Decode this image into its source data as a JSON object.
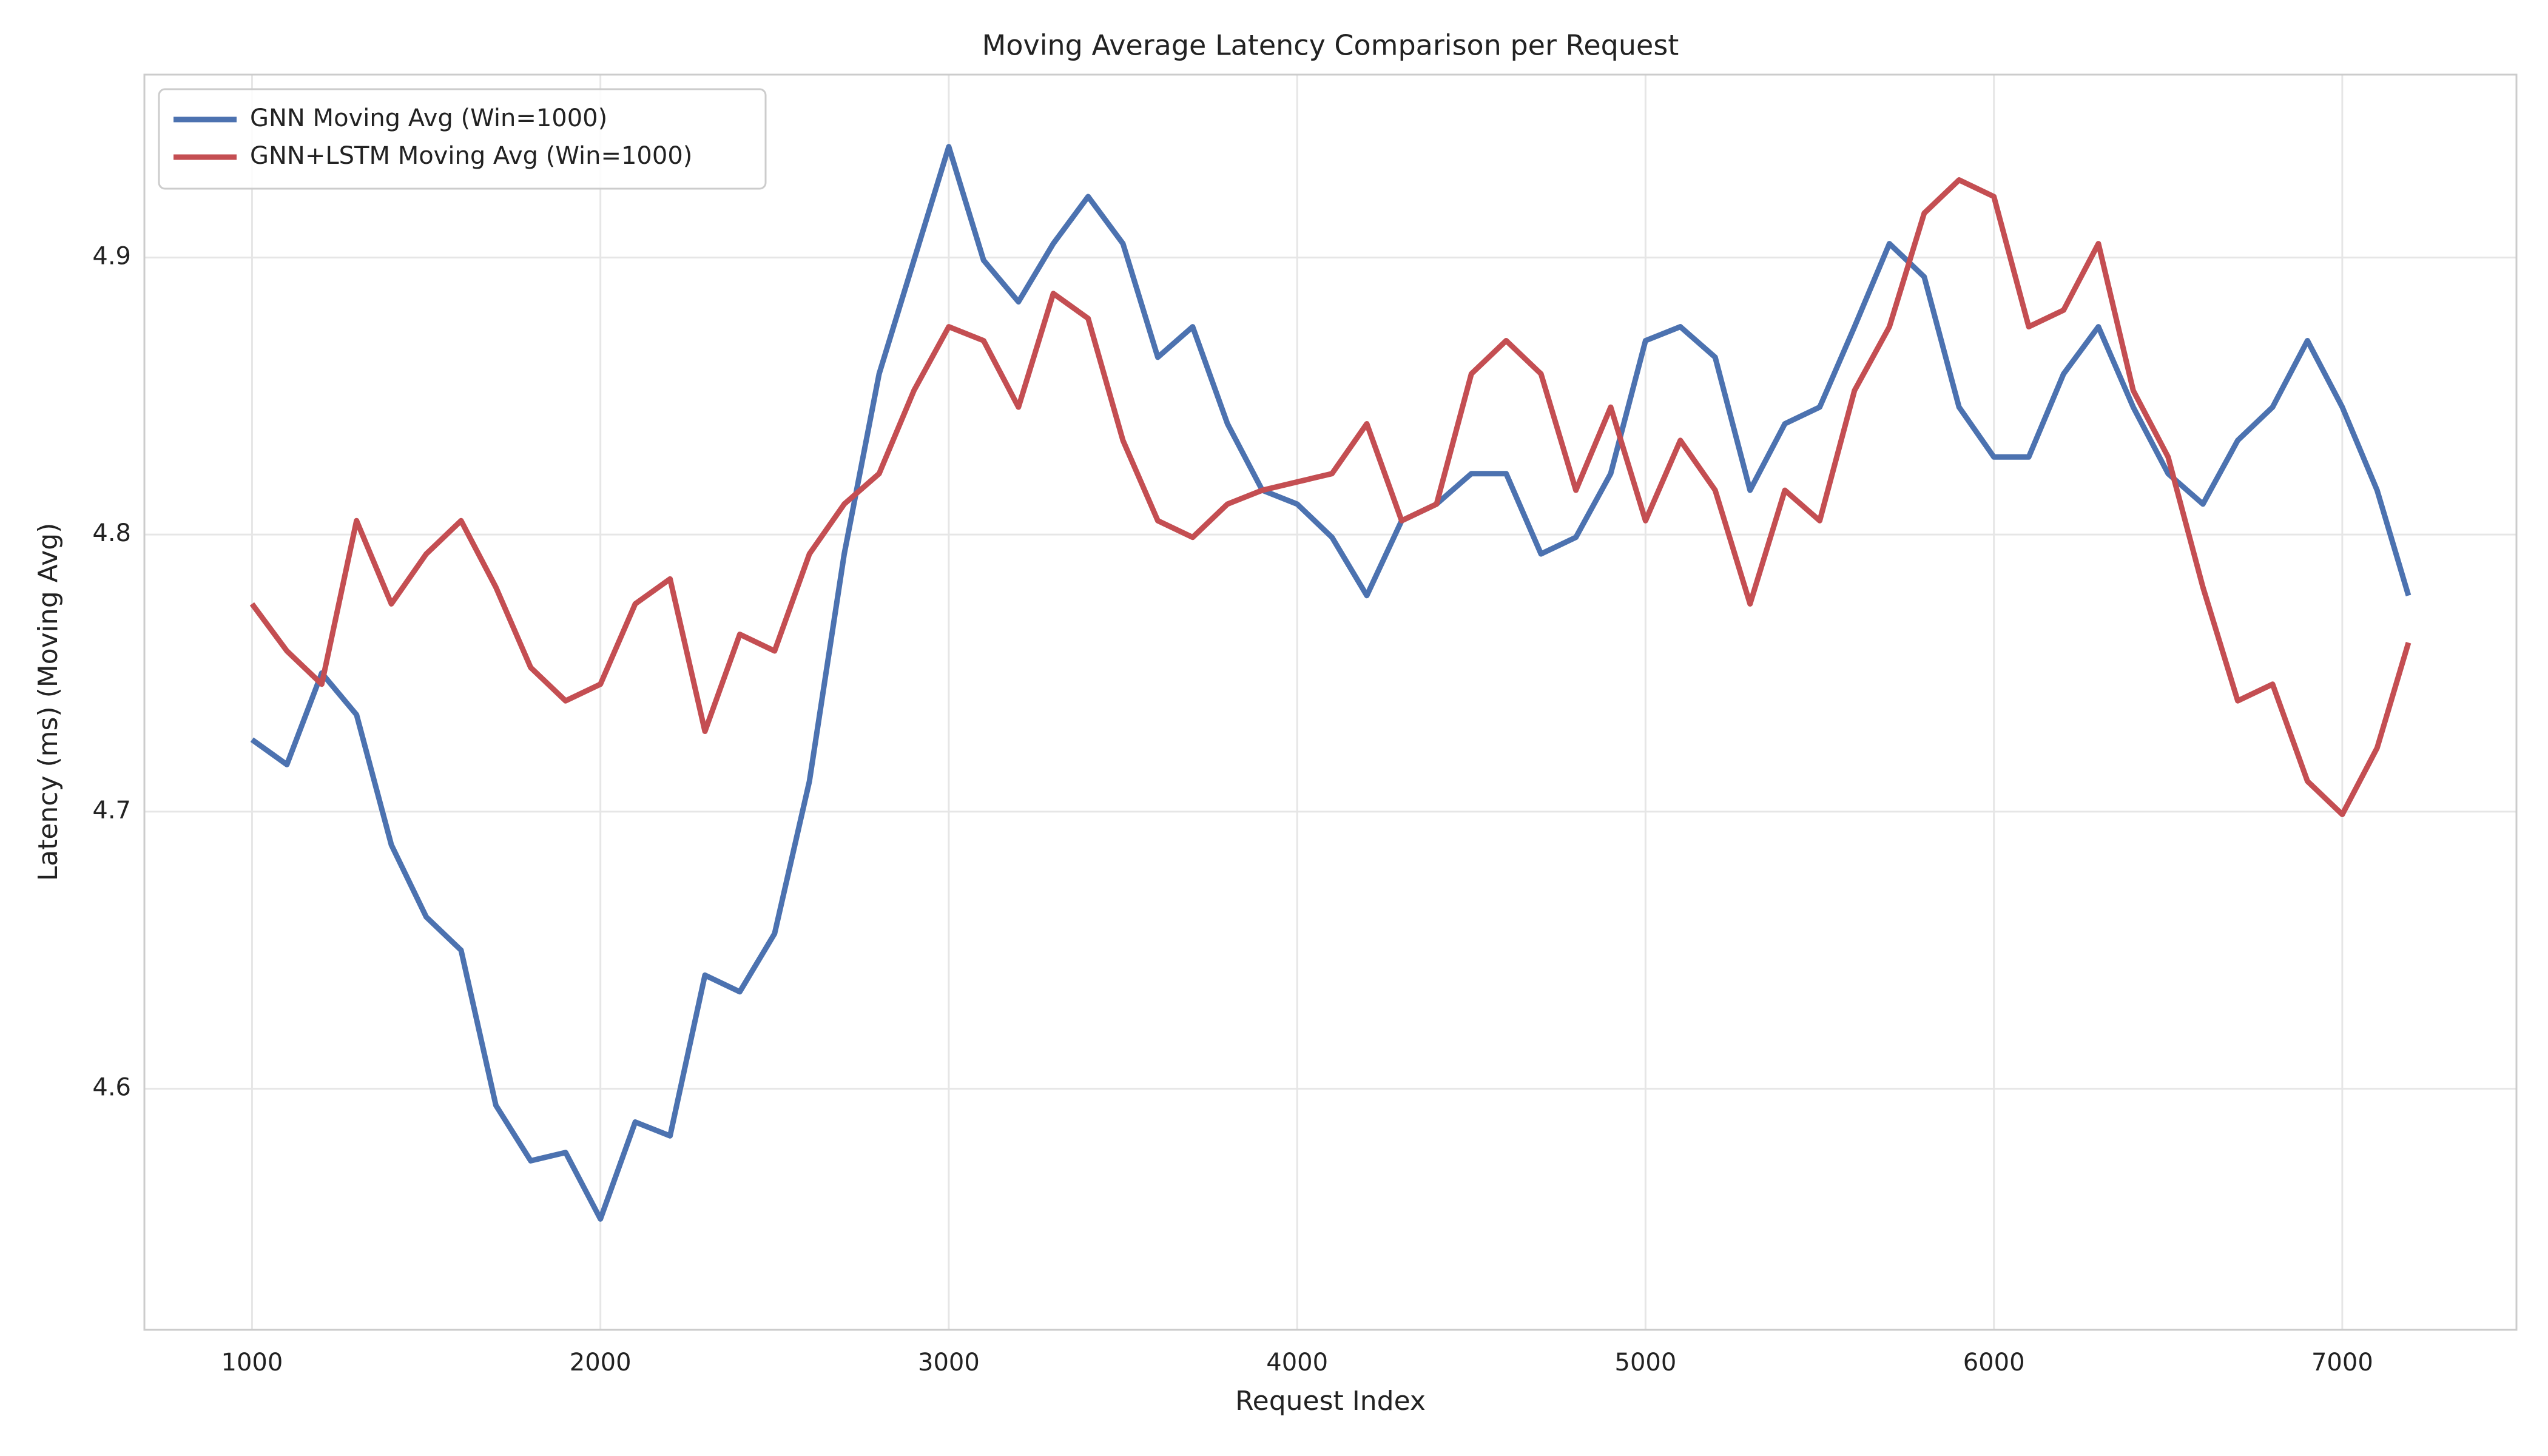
{
  "chart_data": {
    "type": "line",
    "title": "Moving Average Latency Comparison per Request",
    "x_label": "Request Index",
    "y_label": "Latency (ms) (Moving Avg)",
    "x": [
      1000,
      1100,
      1200,
      1300,
      1400,
      1500,
      1600,
      1700,
      1800,
      1900,
      2000,
      2100,
      2200,
      2300,
      2400,
      2500,
      2600,
      2700,
      2800,
      2900,
      3000,
      3100,
      3200,
      3300,
      3400,
      3500,
      3600,
      3700,
      3800,
      3900,
      4000,
      4100,
      4200,
      4300,
      4400,
      4500,
      4600,
      4700,
      4800,
      4900,
      5000,
      5100,
      5200,
      5300,
      5400,
      5500,
      5600,
      5700,
      5800,
      5900,
      6000,
      6100,
      6200,
      6300,
      6400,
      6500,
      6600,
      6700,
      6800,
      6900,
      7000,
      7100,
      7190
    ],
    "series": [
      {
        "name": "GNN Moving Avg (Win=1000)",
        "color": "#4c72b0",
        "values": [
          4.726,
          4.717,
          4.75,
          4.735,
          4.688,
          4.662,
          4.65,
          4.594,
          4.574,
          4.577,
          4.553,
          4.588,
          4.583,
          4.641,
          4.635,
          4.656,
          4.711,
          4.793,
          4.858,
          4.899,
          4.94,
          4.899,
          4.884,
          4.905,
          4.922,
          4.905,
          4.864,
          4.875,
          4.84,
          4.816,
          4.811,
          4.799,
          4.778,
          4.805,
          4.811,
          4.822,
          4.822,
          4.793,
          4.799,
          4.822,
          4.87,
          4.875,
          4.864,
          4.816,
          4.84,
          4.846,
          4.875,
          4.905,
          4.893,
          4.846,
          4.828,
          4.828,
          4.858,
          4.875,
          4.846,
          4.822,
          4.811,
          4.834,
          4.846,
          4.87,
          4.846,
          4.816,
          4.778
        ]
      },
      {
        "name": "GNN+LSTM Moving Avg (Win=1000)",
        "color": "#c44e52",
        "values": [
          4.775,
          4.758,
          4.746,
          4.805,
          4.775,
          4.793,
          4.805,
          4.781,
          4.752,
          4.74,
          4.746,
          4.775,
          4.784,
          4.729,
          4.764,
          4.758,
          4.793,
          4.811,
          4.822,
          4.852,
          4.875,
          4.87,
          4.846,
          4.887,
          4.878,
          4.834,
          4.805,
          4.799,
          4.811,
          4.816,
          4.819,
          4.822,
          4.84,
          4.805,
          4.811,
          4.858,
          4.87,
          4.858,
          4.816,
          4.846,
          4.805,
          4.834,
          4.816,
          4.775,
          4.816,
          4.805,
          4.852,
          4.875,
          4.916,
          4.928,
          4.922,
          4.875,
          4.881,
          4.905,
          4.852,
          4.828,
          4.781,
          4.74,
          4.746,
          4.711,
          4.699,
          4.723,
          4.761
        ]
      }
    ],
    "xlim": [
      691,
      7500
    ],
    "ylim": [
      4.513,
      4.966
    ],
    "xticks": [
      1000,
      2000,
      3000,
      4000,
      5000,
      6000,
      7000
    ],
    "yticks": [
      4.6,
      4.7,
      4.8,
      4.9
    ],
    "grid": true,
    "legend": "upper left"
  }
}
